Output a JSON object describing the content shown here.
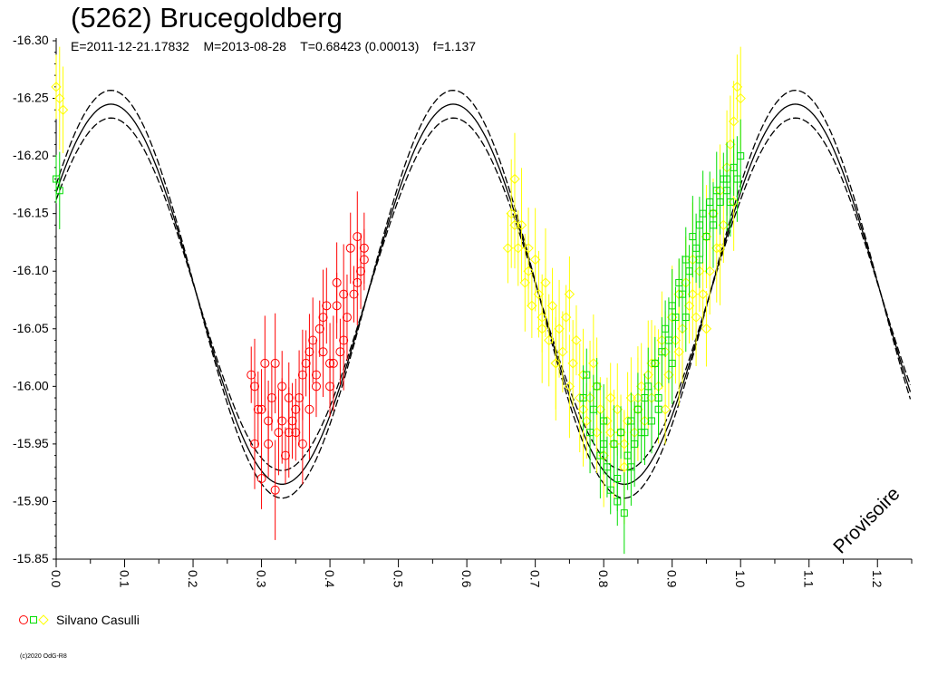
{
  "chart_data": {
    "type": "scatter",
    "title": "(5262) Brucegoldberg",
    "subtitle": "E=2011-12-21.17832    M=2013-08-28    T=0.68423 (0.00013)    f=1.137",
    "xlim": [
      0.0,
      1.25
    ],
    "ylim": [
      -16.3,
      -15.85
    ],
    "y_reversed": true,
    "x_ticks": [
      "0.0",
      "0.1",
      "0.2",
      "0.3",
      "0.4",
      "0.5",
      "0.6",
      "0.7",
      "0.8",
      "0.9",
      "1.0",
      "1.1",
      "1.2"
    ],
    "y_ticks": [
      "-16.30",
      "-16.25",
      "-16.20",
      "-16.15",
      "-16.10",
      "-16.05",
      "-16.00",
      "-15.95",
      "-15.90",
      "-15.85"
    ],
    "grid": false,
    "model_curve": {
      "mean": -16.08,
      "amplitude": 0.165,
      "phase_of_max": 0.08,
      "period_in_phase": 0.5,
      "envelope": 0.012,
      "x_end": 1.25
    },
    "annotation": "Provisoire",
    "legend": {
      "label": "Silvano Casulli",
      "placement": "bottom-left",
      "markers": [
        {
          "shape": "circle",
          "color": "#ff0000"
        },
        {
          "shape": "square",
          "color": "#00dd00"
        },
        {
          "shape": "diamond",
          "color": "#ffff00"
        }
      ]
    },
    "series": [
      {
        "shape": "circle",
        "color": "#ff0000",
        "error": 0.035,
        "x": [
          0.285,
          0.29,
          0.295,
          0.3,
          0.305,
          0.31,
          0.315,
          0.32,
          0.325,
          0.33,
          0.335,
          0.34,
          0.345,
          0.35,
          0.355,
          0.36,
          0.365,
          0.37,
          0.375,
          0.38,
          0.385,
          0.39,
          0.395,
          0.4,
          0.405,
          0.41,
          0.415,
          0.42,
          0.425,
          0.43,
          0.435,
          0.44,
          0.445,
          0.45,
          0.29,
          0.3,
          0.31,
          0.32,
          0.33,
          0.34,
          0.35,
          0.36,
          0.37,
          0.38,
          0.39,
          0.4,
          0.41,
          0.42,
          0.44,
          0.45
        ],
        "y": [
          -16.01,
          -15.95,
          -15.98,
          -15.92,
          -16.02,
          -15.97,
          -15.99,
          -15.91,
          -15.96,
          -16.0,
          -15.94,
          -15.96,
          -15.97,
          -15.98,
          -15.99,
          -15.95,
          -16.02,
          -15.98,
          -16.04,
          -16.01,
          -16.05,
          -16.03,
          -16.07,
          -16.0,
          -16.02,
          -16.09,
          -16.03,
          -16.08,
          -16.06,
          -16.12,
          -16.08,
          -16.13,
          -16.1,
          -16.11,
          -16.0,
          -15.98,
          -15.95,
          -16.02,
          -15.97,
          -15.99,
          -15.96,
          -16.01,
          -16.03,
          -16.0,
          -16.06,
          -16.02,
          -16.07,
          -16.04,
          -16.09,
          -16.12
        ]
      },
      {
        "shape": "square",
        "color": "#00dd00",
        "error": 0.03,
        "x": [
          0.0,
          0.005,
          0.77,
          0.775,
          0.78,
          0.785,
          0.79,
          0.795,
          0.8,
          0.805,
          0.81,
          0.815,
          0.82,
          0.825,
          0.83,
          0.835,
          0.84,
          0.845,
          0.85,
          0.855,
          0.86,
          0.865,
          0.87,
          0.875,
          0.88,
          0.885,
          0.89,
          0.895,
          0.9,
          0.905,
          0.91,
          0.915,
          0.92,
          0.925,
          0.93,
          0.935,
          0.94,
          0.945,
          0.95,
          0.955,
          0.96,
          0.965,
          0.97,
          0.975,
          0.98,
          0.985,
          0.99,
          0.995,
          1.0,
          0.8,
          0.82,
          0.84,
          0.86,
          0.88,
          0.9,
          0.92,
          0.94,
          0.96,
          0.98
        ],
        "y": [
          -16.18,
          -16.17,
          -15.99,
          -16.01,
          -15.96,
          -15.98,
          -16.0,
          -15.94,
          -15.97,
          -15.93,
          -15.91,
          -15.95,
          -15.92,
          -15.96,
          -15.89,
          -15.94,
          -15.97,
          -15.95,
          -15.98,
          -15.96,
          -15.99,
          -16.0,
          -15.97,
          -16.02,
          -15.99,
          -16.03,
          -16.05,
          -16.04,
          -16.07,
          -16.06,
          -16.09,
          -16.08,
          -16.11,
          -16.1,
          -16.13,
          -16.12,
          -16.14,
          -16.15,
          -16.13,
          -16.16,
          -16.15,
          -16.17,
          -16.16,
          -16.18,
          -16.17,
          -16.16,
          -16.19,
          -16.18,
          -16.2,
          -15.95,
          -15.9,
          -15.93,
          -15.96,
          -15.98,
          -16.02,
          -16.06,
          -16.11,
          -16.14,
          -16.18
        ]
      },
      {
        "shape": "diamond",
        "color": "#ffff00",
        "error": 0.04,
        "x": [
          0.0,
          0.005,
          0.01,
          0.66,
          0.665,
          0.67,
          0.675,
          0.68,
          0.685,
          0.69,
          0.695,
          0.7,
          0.705,
          0.71,
          0.715,
          0.72,
          0.725,
          0.73,
          0.735,
          0.74,
          0.745,
          0.75,
          0.755,
          0.76,
          0.765,
          0.77,
          0.775,
          0.78,
          0.785,
          0.79,
          0.795,
          0.8,
          0.805,
          0.81,
          0.815,
          0.82,
          0.825,
          0.83,
          0.835,
          0.84,
          0.845,
          0.85,
          0.855,
          0.86,
          0.865,
          0.87,
          0.875,
          0.88,
          0.885,
          0.89,
          0.895,
          0.9,
          0.905,
          0.91,
          0.915,
          0.92,
          0.925,
          0.93,
          0.935,
          0.94,
          0.945,
          0.95,
          0.955,
          0.96,
          0.965,
          0.97,
          0.975,
          0.98,
          0.985,
          0.99,
          0.995,
          1.0,
          0.67,
          0.69,
          0.71,
          0.73,
          0.75,
          0.77,
          0.79,
          0.81,
          0.83,
          0.85,
          0.87,
          0.89,
          0.91,
          0.93,
          0.95,
          0.97,
          0.99
        ],
        "y": [
          -16.26,
          -16.25,
          -16.24,
          -16.12,
          -16.15,
          -16.18,
          -16.12,
          -16.14,
          -16.09,
          -16.12,
          -16.07,
          -16.11,
          -16.08,
          -16.06,
          -16.09,
          -16.04,
          -16.07,
          -16.02,
          -16.05,
          -16.03,
          -16.06,
          -16.0,
          -16.02,
          -16.04,
          -15.99,
          -16.01,
          -15.97,
          -15.99,
          -16.02,
          -15.96,
          -15.98,
          -15.94,
          -15.97,
          -15.99,
          -15.95,
          -15.98,
          -15.96,
          -15.93,
          -15.97,
          -15.99,
          -15.96,
          -15.98,
          -16.0,
          -15.97,
          -16.01,
          -15.99,
          -16.02,
          -16.0,
          -16.04,
          -16.03,
          -16.01,
          -16.06,
          -16.04,
          -16.08,
          -16.05,
          -16.09,
          -16.07,
          -16.11,
          -16.06,
          -16.1,
          -16.08,
          -16.13,
          -16.1,
          -16.15,
          -16.12,
          -16.17,
          -16.14,
          -16.19,
          -16.21,
          -16.23,
          -16.26,
          -16.25,
          -16.14,
          -16.1,
          -16.05,
          -16.02,
          -16.08,
          -15.98,
          -16.0,
          -15.96,
          -15.95,
          -15.99,
          -16.02,
          -15.98,
          -16.03,
          -16.08,
          -16.05,
          -16.12,
          -16.16
        ]
      }
    ]
  },
  "footer": {
    "copyright": "(c)2020 OdG-R8"
  }
}
